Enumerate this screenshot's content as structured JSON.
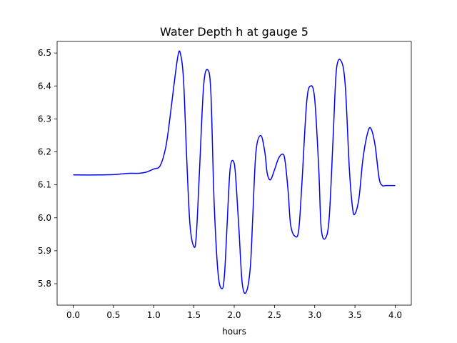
{
  "chart_data": {
    "type": "line",
    "title": "Water Depth h at gauge 5",
    "xlabel": "hours",
    "ylabel": "",
    "xlim": [
      -0.2,
      4.2
    ],
    "ylim": [
      5.735,
      6.535
    ],
    "x_ticks": [
      0.0,
      0.5,
      1.0,
      1.5,
      2.0,
      2.5,
      3.0,
      3.5,
      4.0
    ],
    "x_tick_labels": [
      "0.0",
      "0.5",
      "1.0",
      "1.5",
      "2.0",
      "2.5",
      "3.0",
      "3.5",
      "4.0"
    ],
    "y_ticks": [
      5.8,
      5.9,
      6.0,
      6.1,
      6.2,
      6.3,
      6.4,
      6.5
    ],
    "y_tick_labels": [
      "5.8",
      "5.9",
      "6.0",
      "6.1",
      "6.2",
      "6.3",
      "6.4",
      "6.5"
    ],
    "grid": false,
    "line_color": "#0000ff",
    "series": [
      {
        "x": [
          0.0,
          0.3,
          0.5,
          0.6,
          0.7,
          0.8,
          0.9,
          1.0,
          1.08,
          1.15,
          1.2,
          1.25,
          1.3,
          1.33,
          1.37,
          1.41,
          1.45,
          1.5,
          1.53,
          1.57,
          1.62,
          1.67,
          1.71,
          1.75,
          1.8,
          1.85,
          1.88,
          1.91,
          1.95,
          2.0,
          2.03,
          2.06,
          2.1,
          2.15,
          2.2,
          2.23,
          2.27,
          2.33,
          2.38,
          2.41,
          2.45,
          2.5,
          2.55,
          2.6,
          2.63,
          2.67,
          2.7,
          2.75,
          2.8,
          2.84,
          2.9,
          2.95,
          3.0,
          3.05,
          3.08,
          3.13,
          3.18,
          3.23,
          3.27,
          3.33,
          3.38,
          3.43,
          3.47,
          3.5,
          3.55,
          3.6,
          3.66,
          3.7,
          3.75,
          3.8,
          3.84,
          3.88,
          3.92,
          3.97,
          4.0
        ],
        "y": [
          6.13,
          6.13,
          6.131,
          6.133,
          6.135,
          6.135,
          6.138,
          6.148,
          6.158,
          6.215,
          6.3,
          6.4,
          6.49,
          6.5,
          6.42,
          6.18,
          5.98,
          5.912,
          5.95,
          6.15,
          6.4,
          6.449,
          6.38,
          6.05,
          5.83,
          5.785,
          5.83,
          5.97,
          6.15,
          6.165,
          6.08,
          5.96,
          5.8,
          5.775,
          5.85,
          6.0,
          6.2,
          6.25,
          6.2,
          6.135,
          6.115,
          6.145,
          6.18,
          6.193,
          6.175,
          6.08,
          5.98,
          5.945,
          5.96,
          6.1,
          6.35,
          6.4,
          6.36,
          6.15,
          5.97,
          5.937,
          6.0,
          6.25,
          6.45,
          6.475,
          6.4,
          6.15,
          6.03,
          6.012,
          6.06,
          6.18,
          6.26,
          6.27,
          6.22,
          6.12,
          6.098,
          6.098,
          6.098,
          6.098,
          6.098
        ]
      }
    ]
  }
}
